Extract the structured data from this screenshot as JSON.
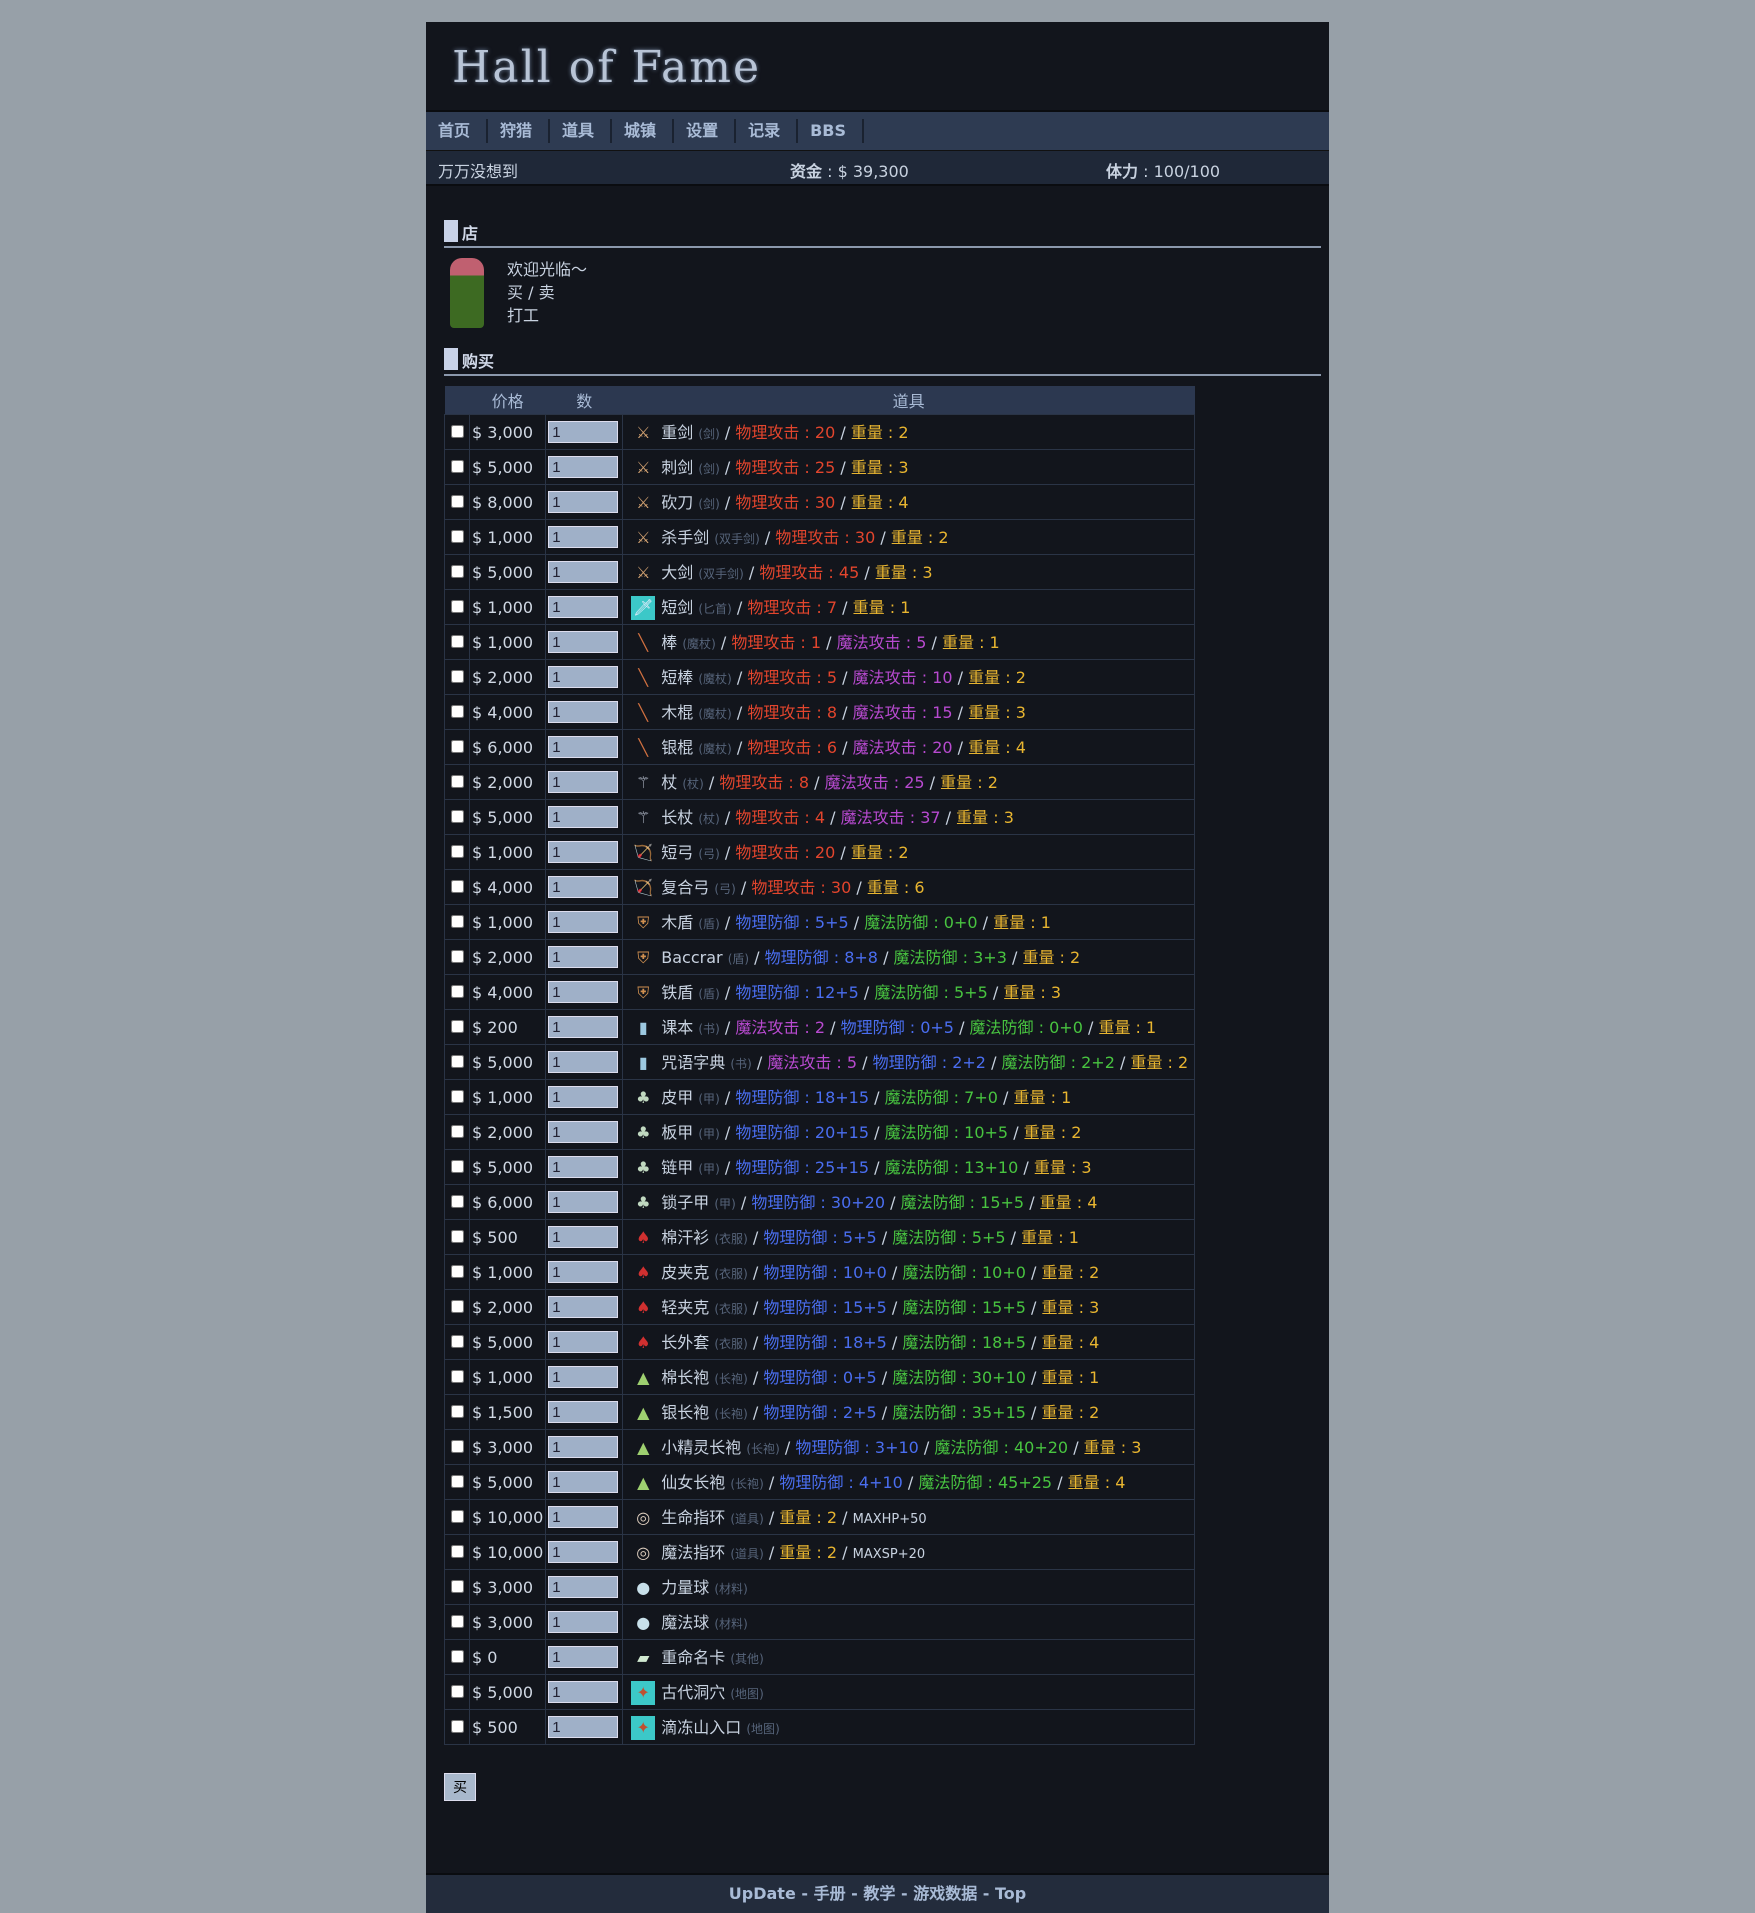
{
  "title": "Hall of Fame",
  "nav": [
    "首页",
    "狩猎",
    "道具",
    "城镇",
    "设置",
    "记录",
    "BBS"
  ],
  "status": {
    "name": "万万没想到",
    "money_label": "资金",
    "money": "$ 39,300",
    "stamina_label": "体力",
    "stamina": "100/100"
  },
  "shop": {
    "heading": "店",
    "menu": [
      "欢迎光临～",
      "买 / 卖",
      "打工"
    ]
  },
  "buy": {
    "heading": "购买",
    "columns": [
      "价格",
      "数",
      "道具"
    ],
    "button": "买",
    "default_qty": "1",
    "items": [
      {
        "price": "$ 3,000",
        "name": "重剑",
        "cat": "剑",
        "icon": "sword-icon",
        "stats": [
          [
            "物理攻击",
            "20",
            "pa"
          ],
          [
            "重量",
            "2",
            "wt"
          ]
        ]
      },
      {
        "price": "$ 5,000",
        "name": "刺剑",
        "cat": "剑",
        "icon": "sword-icon",
        "stats": [
          [
            "物理攻击",
            "25",
            "pa"
          ],
          [
            "重量",
            "3",
            "wt"
          ]
        ]
      },
      {
        "price": "$ 8,000",
        "name": "砍刀",
        "cat": "剑",
        "icon": "sword-icon",
        "stats": [
          [
            "物理攻击",
            "30",
            "pa"
          ],
          [
            "重量",
            "4",
            "wt"
          ]
        ]
      },
      {
        "price": "$ 1,000",
        "name": "杀手剑",
        "cat": "双手剑",
        "icon": "sword-icon",
        "stats": [
          [
            "物理攻击",
            "30",
            "pa"
          ],
          [
            "重量",
            "2",
            "wt"
          ]
        ]
      },
      {
        "price": "$ 5,000",
        "name": "大剑",
        "cat": "双手剑",
        "icon": "sword-icon",
        "stats": [
          [
            "物理攻击",
            "45",
            "pa"
          ],
          [
            "重量",
            "3",
            "wt"
          ]
        ]
      },
      {
        "price": "$ 1,000",
        "name": "短剑",
        "cat": "匕首",
        "icon": "dagger-icon",
        "stats": [
          [
            "物理攻击",
            "7",
            "pa"
          ],
          [
            "重量",
            "1",
            "wt"
          ]
        ]
      },
      {
        "price": "$ 1,000",
        "name": "棒",
        "cat": "魔杖",
        "icon": "wand-icon",
        "stats": [
          [
            "物理攻击",
            "1",
            "pa"
          ],
          [
            "魔法攻击",
            "5",
            "ma"
          ],
          [
            "重量",
            "1",
            "wt"
          ]
        ]
      },
      {
        "price": "$ 2,000",
        "name": "短棒",
        "cat": "魔杖",
        "icon": "wand-icon",
        "stats": [
          [
            "物理攻击",
            "5",
            "pa"
          ],
          [
            "魔法攻击",
            "10",
            "ma"
          ],
          [
            "重量",
            "2",
            "wt"
          ]
        ]
      },
      {
        "price": "$ 4,000",
        "name": "木棍",
        "cat": "魔杖",
        "icon": "wand-icon",
        "stats": [
          [
            "物理攻击",
            "8",
            "pa"
          ],
          [
            "魔法攻击",
            "15",
            "ma"
          ],
          [
            "重量",
            "3",
            "wt"
          ]
        ]
      },
      {
        "price": "$ 6,000",
        "name": "银棍",
        "cat": "魔杖",
        "icon": "wand-icon",
        "stats": [
          [
            "物理攻击",
            "6",
            "pa"
          ],
          [
            "魔法攻击",
            "20",
            "ma"
          ],
          [
            "重量",
            "4",
            "wt"
          ]
        ]
      },
      {
        "price": "$ 2,000",
        "name": "杖",
        "cat": "杖",
        "icon": "staff-icon",
        "stats": [
          [
            "物理攻击",
            "8",
            "pa"
          ],
          [
            "魔法攻击",
            "25",
            "ma"
          ],
          [
            "重量",
            "2",
            "wt"
          ]
        ]
      },
      {
        "price": "$ 5,000",
        "name": "长杖",
        "cat": "杖",
        "icon": "staff-icon",
        "stats": [
          [
            "物理攻击",
            "4",
            "pa"
          ],
          [
            "魔法攻击",
            "37",
            "ma"
          ],
          [
            "重量",
            "3",
            "wt"
          ]
        ]
      },
      {
        "price": "$ 1,000",
        "name": "短弓",
        "cat": "弓",
        "icon": "bow-icon",
        "stats": [
          [
            "物理攻击",
            "20",
            "pa"
          ],
          [
            "重量",
            "2",
            "wt"
          ]
        ]
      },
      {
        "price": "$ 4,000",
        "name": "复合弓",
        "cat": "弓",
        "icon": "bow-icon",
        "stats": [
          [
            "物理攻击",
            "30",
            "pa"
          ],
          [
            "重量",
            "6",
            "wt"
          ]
        ]
      },
      {
        "price": "$ 1,000",
        "name": "木盾",
        "cat": "盾",
        "icon": "shield-icon",
        "stats": [
          [
            "物理防御",
            "5+5",
            "pd"
          ],
          [
            "魔法防御",
            "0+0",
            "md"
          ],
          [
            "重量",
            "1",
            "wt"
          ]
        ]
      },
      {
        "price": "$ 2,000",
        "name": "Baccrar",
        "cat": "盾",
        "icon": "shield-icon",
        "stats": [
          [
            "物理防御",
            "8+8",
            "pd"
          ],
          [
            "魔法防御",
            "3+3",
            "md"
          ],
          [
            "重量",
            "2",
            "wt"
          ]
        ]
      },
      {
        "price": "$ 4,000",
        "name": "铁盾",
        "cat": "盾",
        "icon": "shield-icon",
        "stats": [
          [
            "物理防御",
            "12+5",
            "pd"
          ],
          [
            "魔法防御",
            "5+5",
            "md"
          ],
          [
            "重量",
            "3",
            "wt"
          ]
        ]
      },
      {
        "price": "$ 200",
        "name": "课本",
        "cat": "书",
        "icon": "book-icon",
        "stats": [
          [
            "魔法攻击",
            "2",
            "ma"
          ],
          [
            "物理防御",
            "0+5",
            "pd"
          ],
          [
            "魔法防御",
            "0+0",
            "md"
          ],
          [
            "重量",
            "1",
            "wt"
          ]
        ]
      },
      {
        "price": "$ 5,000",
        "name": "咒语字典",
        "cat": "书",
        "icon": "book-icon",
        "stats": [
          [
            "魔法攻击",
            "5",
            "ma"
          ],
          [
            "物理防御",
            "2+2",
            "pd"
          ],
          [
            "魔法防御",
            "2+2",
            "md"
          ],
          [
            "重量",
            "2",
            "wt"
          ]
        ]
      },
      {
        "price": "$ 1,000",
        "name": "皮甲",
        "cat": "甲",
        "icon": "armor-icon",
        "stats": [
          [
            "物理防御",
            "18+15",
            "pd"
          ],
          [
            "魔法防御",
            "7+0",
            "md"
          ],
          [
            "重量",
            "1",
            "wt"
          ]
        ]
      },
      {
        "price": "$ 2,000",
        "name": "板甲",
        "cat": "甲",
        "icon": "armor-icon",
        "stats": [
          [
            "物理防御",
            "20+15",
            "pd"
          ],
          [
            "魔法防御",
            "10+5",
            "md"
          ],
          [
            "重量",
            "2",
            "wt"
          ]
        ]
      },
      {
        "price": "$ 5,000",
        "name": "链甲",
        "cat": "甲",
        "icon": "armor-icon",
        "stats": [
          [
            "物理防御",
            "25+15",
            "pd"
          ],
          [
            "魔法防御",
            "13+10",
            "md"
          ],
          [
            "重量",
            "3",
            "wt"
          ]
        ]
      },
      {
        "price": "$ 6,000",
        "name": "锁子甲",
        "cat": "甲",
        "icon": "armor-icon",
        "stats": [
          [
            "物理防御",
            "30+20",
            "pd"
          ],
          [
            "魔法防御",
            "15+5",
            "md"
          ],
          [
            "重量",
            "4",
            "wt"
          ]
        ]
      },
      {
        "price": "$ 500",
        "name": "棉汗衫",
        "cat": "衣服",
        "icon": "clothes-icon",
        "stats": [
          [
            "物理防御",
            "5+5",
            "pd"
          ],
          [
            "魔法防御",
            "5+5",
            "md"
          ],
          [
            "重量",
            "1",
            "wt"
          ]
        ]
      },
      {
        "price": "$ 1,000",
        "name": "皮夹克",
        "cat": "衣服",
        "icon": "clothes-icon",
        "stats": [
          [
            "物理防御",
            "10+0",
            "pd"
          ],
          [
            "魔法防御",
            "10+0",
            "md"
          ],
          [
            "重量",
            "2",
            "wt"
          ]
        ]
      },
      {
        "price": "$ 2,000",
        "name": "轻夹克",
        "cat": "衣服",
        "icon": "clothes-icon",
        "stats": [
          [
            "物理防御",
            "15+5",
            "pd"
          ],
          [
            "魔法防御",
            "15+5",
            "md"
          ],
          [
            "重量",
            "3",
            "wt"
          ]
        ]
      },
      {
        "price": "$ 5,000",
        "name": "长外套",
        "cat": "衣服",
        "icon": "clothes-icon",
        "stats": [
          [
            "物理防御",
            "18+5",
            "pd"
          ],
          [
            "魔法防御",
            "18+5",
            "md"
          ],
          [
            "重量",
            "4",
            "wt"
          ]
        ]
      },
      {
        "price": "$ 1,000",
        "name": "棉长袍",
        "cat": "长袍",
        "icon": "robe-icon",
        "stats": [
          [
            "物理防御",
            "0+5",
            "pd"
          ],
          [
            "魔法防御",
            "30+10",
            "md"
          ],
          [
            "重量",
            "1",
            "wt"
          ]
        ]
      },
      {
        "price": "$ 1,500",
        "name": "银长袍",
        "cat": "长袍",
        "icon": "robe-icon",
        "stats": [
          [
            "物理防御",
            "2+5",
            "pd"
          ],
          [
            "魔法防御",
            "35+15",
            "md"
          ],
          [
            "重量",
            "2",
            "wt"
          ]
        ]
      },
      {
        "price": "$ 3,000",
        "name": "小精灵长袍",
        "cat": "长袍",
        "icon": "robe-icon",
        "stats": [
          [
            "物理防御",
            "3+10",
            "pd"
          ],
          [
            "魔法防御",
            "40+20",
            "md"
          ],
          [
            "重量",
            "3",
            "wt"
          ]
        ]
      },
      {
        "price": "$ 5,000",
        "name": "仙女长袍",
        "cat": "长袍",
        "icon": "robe-icon",
        "stats": [
          [
            "物理防御",
            "4+10",
            "pd"
          ],
          [
            "魔法防御",
            "45+25",
            "md"
          ],
          [
            "重量",
            "4",
            "wt"
          ]
        ]
      },
      {
        "price": "$ 10,000",
        "name": "生命指环",
        "cat": "道具",
        "icon": "ring-icon",
        "stats": [
          [
            "重量",
            "2",
            "wt"
          ],
          [
            "",
            "MAXHP+50",
            "pl"
          ]
        ]
      },
      {
        "price": "$ 10,000",
        "name": "魔法指环",
        "cat": "道具",
        "icon": "ring-icon",
        "stats": [
          [
            "重量",
            "2",
            "wt"
          ],
          [
            "",
            "MAXSP+20",
            "pl"
          ]
        ]
      },
      {
        "price": "$ 3,000",
        "name": "力量球",
        "cat": "材料",
        "icon": "orb-icon",
        "stats": []
      },
      {
        "price": "$ 3,000",
        "name": "魔法球",
        "cat": "材料",
        "icon": "orb-icon",
        "stats": []
      },
      {
        "price": "$ 0",
        "name": "重命名卡",
        "cat": "其他",
        "icon": "card-icon",
        "stats": []
      },
      {
        "price": "$ 5,000",
        "name": "古代洞穴",
        "cat": "地图",
        "icon": "map-icon",
        "stats": []
      },
      {
        "price": "$ 500",
        "name": "滴冻山入口",
        "cat": "地图",
        "icon": "map-icon",
        "stats": []
      }
    ]
  },
  "footer": [
    "UpDate",
    "手册",
    "教学",
    "游戏数据",
    "Top"
  ]
}
